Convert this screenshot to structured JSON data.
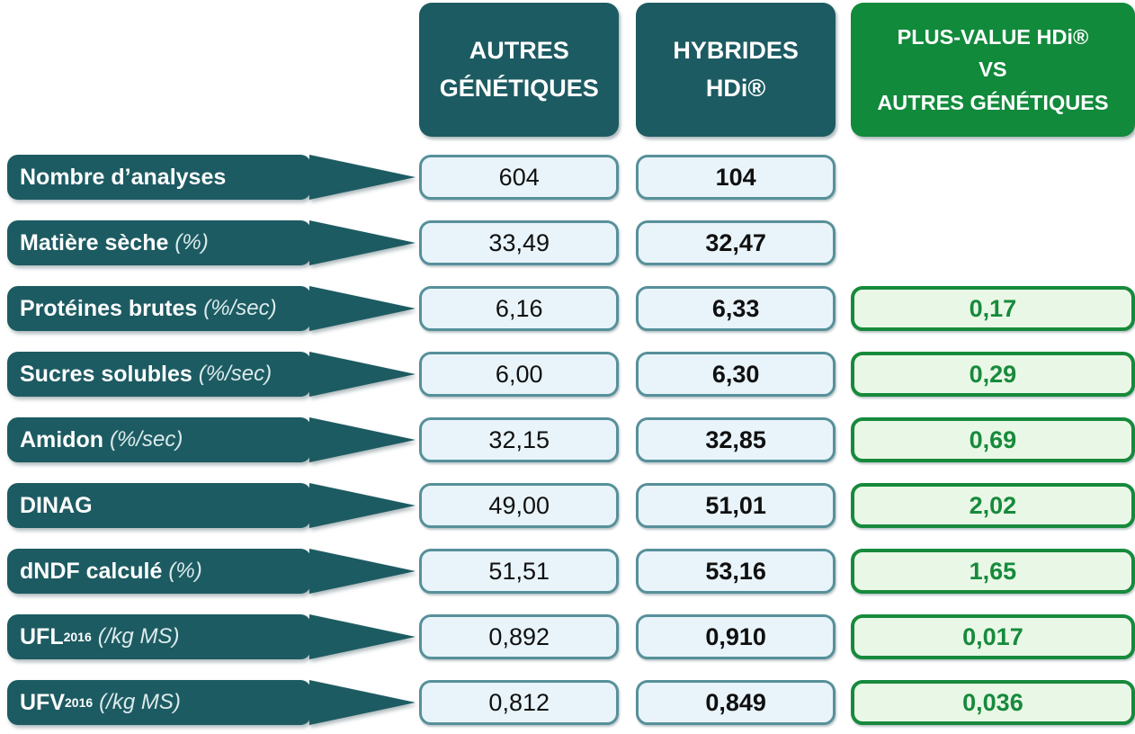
{
  "header": {
    "col_autres": {
      "line1": "AUTRES",
      "line2": "GÉNÉTIQUES"
    },
    "col_hdi": {
      "line1": "HYBRIDES",
      "line2": "HDi®"
    },
    "col_plus": {
      "line1": "PLUS-VALUE HDi®",
      "line2": "VS",
      "line3": "AUTRES GÉNÉTIQUES"
    }
  },
  "colors": {
    "teal_header": "#1d5b62",
    "green_header": "#118a3b",
    "value_box_fill": "#e8f4fa",
    "value_box_border": "#57909a",
    "plus_box_fill": "#e9f8e6",
    "plus_box_border": "#178a3c",
    "plus_text": "#178a3c"
  },
  "chart_data": {
    "type": "table",
    "title": "",
    "columns": [
      "",
      "AUTRES GÉNÉTIQUES",
      "HYBRIDES HDi®",
      "PLUS-VALUE HDi® VS AUTRES GÉNÉTIQUES"
    ],
    "rows": [
      {
        "label": "Nombre d’analyses",
        "sub": "",
        "unit": "",
        "autres": "604",
        "hdi": "104",
        "plus": ""
      },
      {
        "label": "Matière sèche",
        "sub": "",
        "unit": "(%)",
        "autres": "33,49",
        "hdi": "32,47",
        "plus": ""
      },
      {
        "label": "Protéines brutes",
        "sub": "",
        "unit": "(%/sec)",
        "autres": "6,16",
        "hdi": "6,33",
        "plus": "0,17"
      },
      {
        "label": "Sucres solubles",
        "sub": "",
        "unit": "(%/sec)",
        "autres": "6,00",
        "hdi": "6,30",
        "plus": "0,29"
      },
      {
        "label": "Amidon",
        "sub": "",
        "unit": "(%/sec)",
        "autres": "32,15",
        "hdi": "32,85",
        "plus": "0,69"
      },
      {
        "label": "DINAG",
        "sub": "",
        "unit": "",
        "autres": "49,00",
        "hdi": "51,01",
        "plus": "2,02"
      },
      {
        "label": "dNDF calculé",
        "sub": "",
        "unit": "(%)",
        "autres": "51,51",
        "hdi": "53,16",
        "plus": "1,65"
      },
      {
        "label": "UFL",
        "sub": "2016",
        "unit": "(/kg MS)",
        "autres": "0,892",
        "hdi": "0,910",
        "plus": "0,017"
      },
      {
        "label": "UFV",
        "sub": "2016",
        "unit": "(/kg MS)",
        "autres": "0,812",
        "hdi": "0,849",
        "plus": "0,036"
      }
    ]
  }
}
